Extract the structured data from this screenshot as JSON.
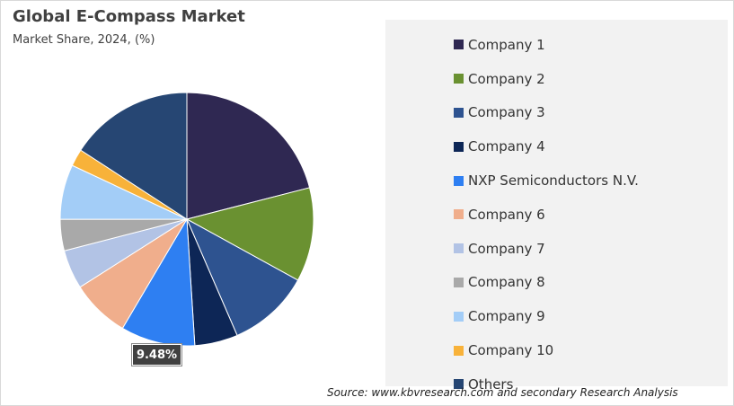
{
  "header": {
    "title": "Global E-Compass  Market",
    "subtitle": "Market Share, 2024, (%)"
  },
  "source": "Source: www.kbvresearch.com and secondary Research Analysis",
  "chart_data": {
    "type": "pie",
    "start_angle": "12 o'clock, clockwise",
    "legend_position": "right",
    "series": [
      {
        "labels": [
          "Company 1",
          "Company 2",
          "Company 3",
          "Company 4",
          "NXP Semiconductors N.V.",
          "Company 6",
          "Company 7",
          "Company 8",
          "Company 9",
          "Company 10",
          "Others"
        ],
        "values": [
          21.0,
          12.0,
          10.5,
          5.5,
          9.48,
          7.5,
          5.0,
          4.0,
          7.0,
          2.2,
          15.82
        ],
        "colors": [
          "#2f2852",
          "#6a9131",
          "#2e5390",
          "#0d2656",
          "#2e7ff2",
          "#f0ae8c",
          "#b2c3e5",
          "#a9a9a9",
          "#a3cdf7",
          "#f8b23a",
          "#264673"
        ]
      }
    ],
    "data_labels": [
      {
        "index": 4,
        "text": "9.48%"
      }
    ]
  }
}
